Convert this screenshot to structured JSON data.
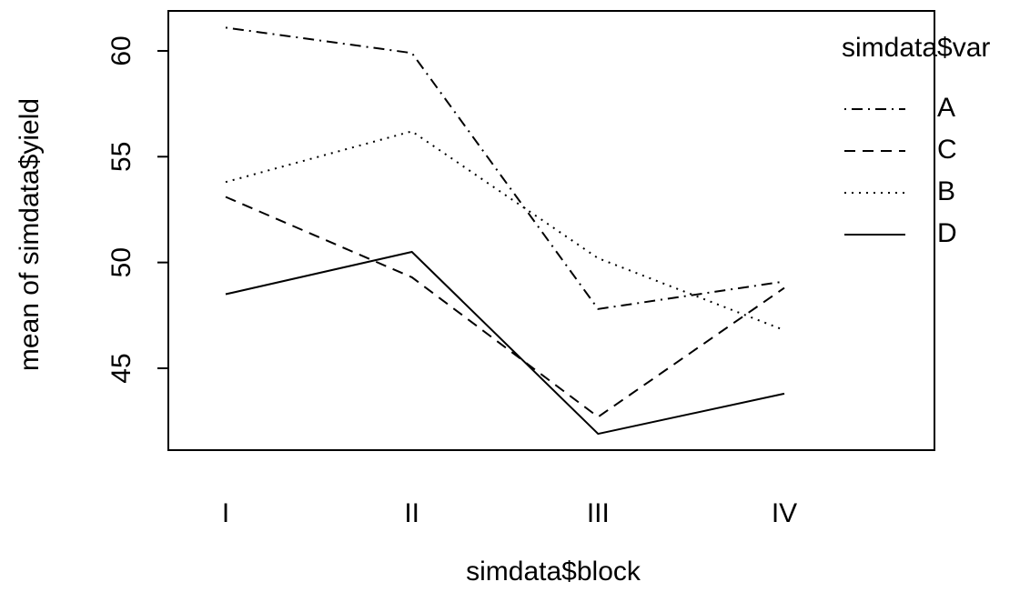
{
  "chart_data": {
    "type": "line",
    "x_label": "simdata$block",
    "y_label": "mean of  simdata$yield",
    "legend_title": "simdata$var",
    "legend": "right",
    "categories": [
      "I",
      "II",
      "III",
      "IV"
    ],
    "ylim": [
      41.13,
      61.89
    ],
    "yticks": [
      45,
      50,
      55,
      60
    ],
    "series": [
      {
        "name": "A",
        "color": "#000000",
        "linetype": "dotdash",
        "values": [
          61.1,
          59.9,
          47.8,
          49.1
        ]
      },
      {
        "name": "C",
        "color": "#000000",
        "linetype": "dashed",
        "values": [
          53.1,
          49.3,
          42.7,
          48.8
        ]
      },
      {
        "name": "B",
        "color": "#000000",
        "linetype": "dotted",
        "values": [
          53.8,
          56.2,
          50.2,
          46.8
        ]
      },
      {
        "name": "D",
        "color": "#000000",
        "linetype": "solid",
        "values": [
          48.5,
          50.5,
          41.9,
          43.8
        ]
      }
    ]
  }
}
